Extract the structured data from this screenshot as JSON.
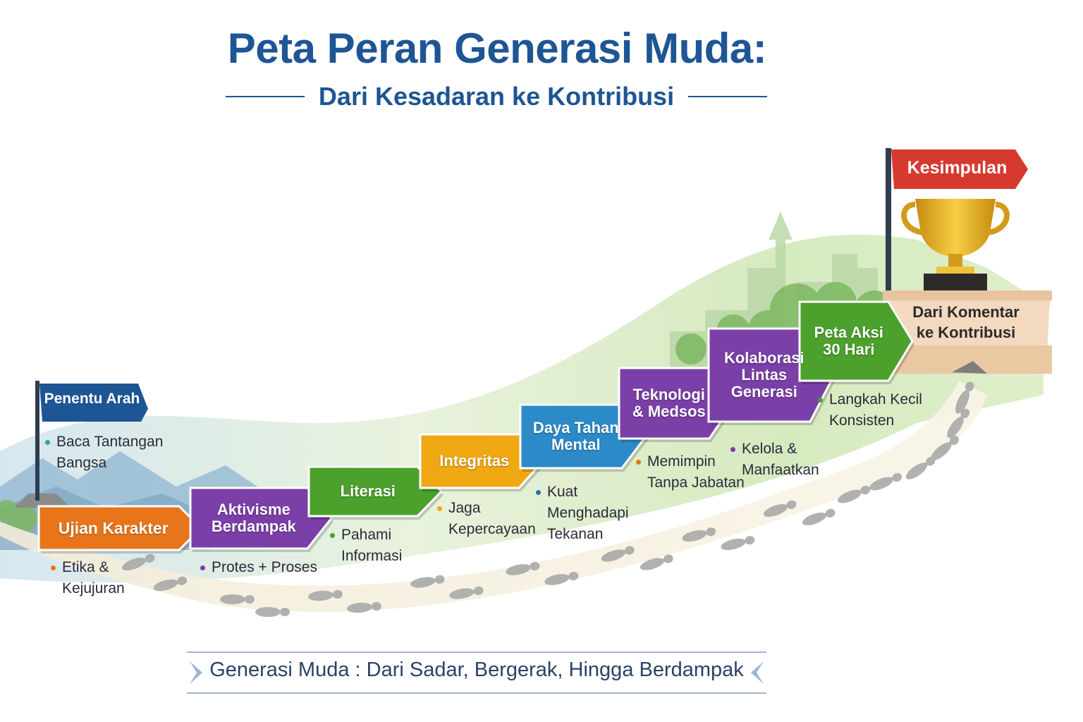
{
  "title": "Peta Peran Generasi Muda:",
  "subtitle": "Dari Kesadaran ke Kontribusi",
  "start_flag": "Penentu Arah",
  "start_flag_bullet": [
    "Baca Tantangan",
    "Bangsa"
  ],
  "end_flag": "Kesimpulan",
  "podium_text": [
    "Dari Komentar",
    "ke Kontribusi"
  ],
  "steps": [
    {
      "label": [
        "Ujian Karakter"
      ],
      "color": "#e8751a",
      "bullet": [
        "Etika &",
        "Kejujuran"
      ],
      "dot": "#e8751a"
    },
    {
      "label": [
        "Aktivisme",
        "Berdampak"
      ],
      "color": "#7b3fa8",
      "bullet": [
        "Protes + Proses"
      ],
      "dot": "#7b3fa8"
    },
    {
      "label": [
        "Literasi"
      ],
      "color": "#4ca02c",
      "bullet": [
        "Pahami",
        "Informasi"
      ],
      "dot": "#4ca02c"
    },
    {
      "label": [
        "Integritas"
      ],
      "color": "#f0a812",
      "bullet": [
        "Jaga",
        "Kepercayaan"
      ],
      "dot": "#f0a812"
    },
    {
      "label": [
        "Daya Tahan",
        "Mental"
      ],
      "color": "#2c8ac9",
      "bullet": [
        "Kuat",
        "Menghadapi",
        "Tekanan"
      ],
      "dot": "#2c6ea8"
    },
    {
      "label": [
        "Teknologi",
        "& Medsos"
      ],
      "color": "#7b3fa8",
      "bullet": [
        "Memimpin",
        "Tanpa Jabatan"
      ],
      "dot": "#e8751a"
    },
    {
      "label": [
        "Kolaborasi",
        "Lintas",
        "Generasi"
      ],
      "color": "#7b3fa8",
      "bullet": [
        "Kelola &",
        "Manfaatkan"
      ],
      "dot": "#7b3fa8"
    },
    {
      "label": [
        "Peta Aksi",
        "30 Hari"
      ],
      "color": "#4ca02c",
      "bullet": [
        "Langkah Kecil",
        "Konsisten"
      ],
      "dot": "#4ca02c"
    }
  ],
  "footer": "Generasi Muda : Dari Sadar, Bergerak, Hingga Berdampak",
  "colors": {
    "title": "#1e5594",
    "start_flag": "#1e5594",
    "end_flag": "#d63a2f",
    "trophy": "#e8b020"
  }
}
